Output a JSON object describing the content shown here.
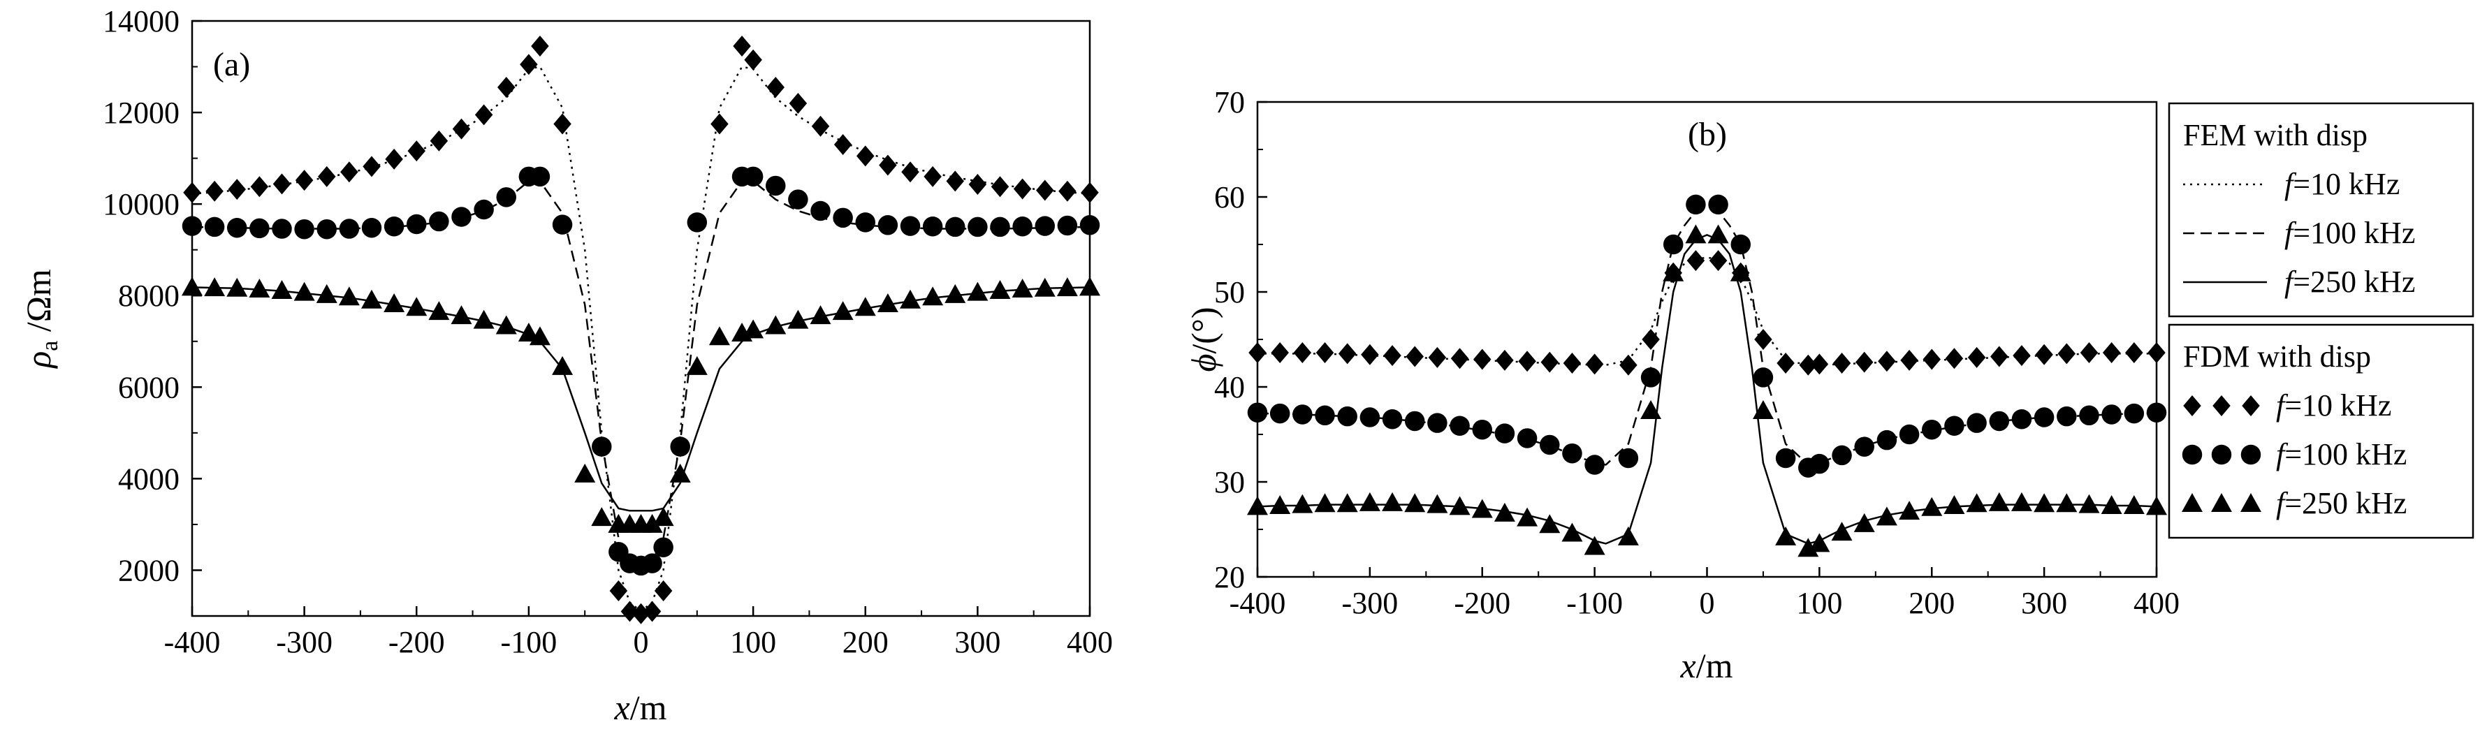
{
  "colors": {
    "ink": "#000000",
    "background": "#ffffff"
  },
  "chart_data": [
    {
      "type": "line",
      "panel_label": "(a)",
      "xlabel": {
        "var": "x",
        "unit": "/m"
      },
      "ylabel": {
        "var": "ρ",
        "sub": "a",
        "unit": " /Ωm"
      },
      "xlim": [
        -400,
        400
      ],
      "ylim": [
        1000,
        14000
      ],
      "xticks": [
        "-400",
        "-300",
        "-200",
        "-100",
        "0",
        "100",
        "200",
        "300",
        "400"
      ],
      "yticks": [
        "2000",
        "4000",
        "6000",
        "8000",
        "10000",
        "12000",
        "14000"
      ],
      "grid": false,
      "x": [
        -400,
        -380,
        -360,
        -340,
        -320,
        -300,
        -280,
        -260,
        -240,
        -220,
        -200,
        -180,
        -160,
        -140,
        -120,
        -100,
        -90,
        -70,
        -50,
        -35,
        -20,
        -10,
        0,
        10,
        20,
        35,
        50,
        70,
        90,
        100,
        120,
        140,
        160,
        180,
        200,
        220,
        240,
        260,
        280,
        300,
        320,
        340,
        360,
        380,
        400
      ],
      "series": [
        {
          "name": "FEM f=10 kHz",
          "kind": "line",
          "style": "dotted",
          "values": [
            10220,
            10260,
            10300,
            10360,
            10420,
            10500,
            10580,
            10680,
            10800,
            10960,
            11140,
            11360,
            11620,
            11920,
            12320,
            12950,
            13000,
            12100,
            9000,
            5000,
            2000,
            1300,
            1100,
            1300,
            2000,
            5000,
            9000,
            12100,
            13000,
            12950,
            12320,
            11920,
            11620,
            11360,
            11140,
            10960,
            10800,
            10680,
            10580,
            10500,
            10420,
            10360,
            10300,
            10260,
            10220
          ]
        },
        {
          "name": "FEM f=100 kHz",
          "kind": "line",
          "style": "dashed",
          "values": [
            9500,
            9490,
            9480,
            9470,
            9460,
            9460,
            9460,
            9460,
            9480,
            9500,
            9540,
            9600,
            9700,
            9850,
            10100,
            10500,
            10500,
            9800,
            7800,
            4800,
            2700,
            2200,
            2100,
            2200,
            2700,
            4800,
            7800,
            9800,
            10500,
            10500,
            10100,
            9850,
            9700,
            9600,
            9540,
            9500,
            9480,
            9460,
            9460,
            9460,
            9460,
            9470,
            9480,
            9490,
            9500
          ]
        },
        {
          "name": "FEM f=250 kHz",
          "kind": "line",
          "style": "solid",
          "values": [
            8180,
            8170,
            8160,
            8130,
            8100,
            8050,
            8000,
            7950,
            7880,
            7800,
            7720,
            7630,
            7540,
            7440,
            7320,
            7150,
            7000,
            6400,
            5000,
            3900,
            3350,
            3300,
            3300,
            3300,
            3350,
            3900,
            5000,
            6400,
            7000,
            7150,
            7320,
            7440,
            7540,
            7630,
            7720,
            7800,
            7880,
            7950,
            8000,
            8050,
            8100,
            8130,
            8160,
            8170,
            8180
          ]
        },
        {
          "name": "FDM f=10 kHz",
          "kind": "marker",
          "marker": "diamond",
          "values": [
            10250,
            10280,
            10320,
            10380,
            10440,
            10520,
            10600,
            10700,
            10820,
            10980,
            11160,
            11380,
            11640,
            11950,
            12550,
            13050,
            13450,
            11750,
            null,
            4700,
            1550,
            1100,
            1050,
            1100,
            1550,
            4700,
            null,
            11750,
            13450,
            13150,
            12550,
            12200,
            11700,
            11300,
            11050,
            10850,
            10700,
            10600,
            10500,
            10430,
            10380,
            10330,
            10300,
            10280,
            10250
          ]
        },
        {
          "name": "FDM f=100 kHz",
          "kind": "marker",
          "marker": "circle",
          "values": [
            9520,
            9500,
            9480,
            9470,
            9460,
            9450,
            9450,
            9460,
            9480,
            9510,
            9560,
            9620,
            9720,
            9880,
            10150,
            10600,
            10600,
            9550,
            null,
            4700,
            2400,
            2150,
            2100,
            2150,
            2500,
            4700,
            9600,
            null,
            10600,
            10600,
            10400,
            10100,
            9850,
            9700,
            9600,
            9540,
            9520,
            9510,
            9500,
            9500,
            9500,
            9510,
            9520,
            9530,
            9540
          ]
        },
        {
          "name": "FDM f=250 kHz",
          "kind": "marker",
          "marker": "triangle",
          "values": [
            8180,
            8170,
            8160,
            8140,
            8110,
            8070,
            8020,
            7970,
            7900,
            7820,
            7740,
            7650,
            7560,
            7460,
            7340,
            7180,
            7100,
            6450,
            4100,
            3150,
            3000,
            3000,
            3000,
            3000,
            3150,
            4100,
            6450,
            7100,
            7180,
            7250,
            7340,
            7460,
            7560,
            7650,
            7740,
            7820,
            7900,
            7970,
            8020,
            8070,
            8110,
            8140,
            8160,
            8170,
            8180
          ]
        }
      ]
    },
    {
      "type": "line",
      "panel_label": "(b)",
      "xlabel": {
        "var": "x",
        "unit": "/m"
      },
      "ylabel": {
        "var": "ϕ",
        "unit": "/(°)"
      },
      "xlim": [
        -400,
        400
      ],
      "ylim": [
        20,
        70
      ],
      "xticks": [
        "-400",
        "-300",
        "-200",
        "-100",
        "0",
        "100",
        "200",
        "300",
        "400"
      ],
      "yticks": [
        "20",
        "30",
        "40",
        "50",
        "60",
        "70"
      ],
      "grid": false,
      "x": [
        -400,
        -380,
        -360,
        -340,
        -320,
        -300,
        -280,
        -260,
        -240,
        -220,
        -200,
        -180,
        -160,
        -140,
        -120,
        -100,
        -90,
        -70,
        -50,
        -40,
        -30,
        -20,
        -10,
        0,
        10,
        20,
        30,
        40,
        50,
        70,
        90,
        100,
        120,
        140,
        160,
        180,
        200,
        220,
        240,
        260,
        280,
        300,
        320,
        340,
        360,
        380,
        400
      ],
      "series": [
        {
          "name": "FEM f=10 kHz",
          "kind": "line",
          "style": "dotted",
          "values": [
            43.5,
            43.5,
            43.5,
            43.5,
            43.4,
            43.3,
            43.2,
            43.1,
            43.0,
            42.9,
            42.8,
            42.7,
            42.6,
            42.5,
            42.4,
            42.3,
            42.3,
            42.8,
            46,
            49,
            51.5,
            53,
            53.5,
            53.6,
            53.5,
            53,
            51.5,
            49,
            46,
            42.8,
            42.3,
            42.3,
            42.4,
            42.5,
            42.6,
            42.7,
            42.8,
            42.9,
            43.0,
            43.1,
            43.2,
            43.3,
            43.4,
            43.5,
            43.5,
            43.5,
            43.5
          ]
        },
        {
          "name": "FEM f=100 kHz",
          "kind": "line",
          "style": "dashed",
          "values": [
            37.2,
            37.2,
            37.1,
            37.0,
            36.9,
            36.8,
            36.6,
            36.4,
            36.1,
            35.8,
            35.4,
            35.0,
            34.5,
            33.8,
            32.9,
            32.0,
            31.8,
            34,
            42,
            50,
            55,
            57,
            58.5,
            59,
            58.5,
            57,
            55,
            50,
            42,
            34,
            31.8,
            32.0,
            32.9,
            33.8,
            34.5,
            35.0,
            35.4,
            35.8,
            36.1,
            36.4,
            36.6,
            36.8,
            36.9,
            37.0,
            37.1,
            37.2,
            37.2
          ]
        },
        {
          "name": "FEM f=250 kHz",
          "kind": "line",
          "style": "solid",
          "values": [
            27.4,
            27.5,
            27.5,
            27.6,
            27.6,
            27.6,
            27.6,
            27.6,
            27.5,
            27.4,
            27.2,
            26.9,
            26.5,
            25.9,
            25.0,
            23.8,
            23.5,
            24.5,
            32,
            42,
            50,
            54,
            55.5,
            56,
            55.5,
            54,
            50,
            42,
            32,
            24.5,
            23.5,
            23.8,
            25.0,
            25.9,
            26.5,
            26.9,
            27.2,
            27.4,
            27.5,
            27.6,
            27.6,
            27.6,
            27.6,
            27.6,
            27.5,
            27.5,
            27.4
          ]
        },
        {
          "name": "FDM f=10 kHz",
          "kind": "marker",
          "marker": "diamond",
          "values": [
            43.6,
            43.6,
            43.6,
            43.6,
            43.5,
            43.4,
            43.3,
            43.2,
            43.1,
            43.0,
            42.9,
            42.8,
            42.7,
            42.6,
            42.5,
            42.4,
            null,
            42.3,
            45,
            null,
            52,
            null,
            53.3,
            null,
            53.3,
            null,
            52,
            null,
            45,
            42.5,
            42.3,
            42.4,
            42.5,
            42.6,
            42.7,
            42.8,
            42.9,
            43.0,
            43.1,
            43.2,
            43.3,
            43.4,
            43.5,
            43.6,
            43.6,
            43.6,
            43.6
          ]
        },
        {
          "name": "FDM f=100 kHz",
          "kind": "marker",
          "marker": "circle",
          "values": [
            37.3,
            37.2,
            37.1,
            37.0,
            36.9,
            36.8,
            36.6,
            36.4,
            36.2,
            35.9,
            35.5,
            35.1,
            34.6,
            33.9,
            33.0,
            31.8,
            null,
            32.5,
            41,
            null,
            55,
            null,
            59.2,
            null,
            59.2,
            null,
            55,
            null,
            41,
            32.5,
            31.5,
            31.9,
            32.8,
            33.7,
            34.4,
            35.0,
            35.5,
            35.9,
            36.2,
            36.4,
            36.6,
            36.8,
            36.9,
            37.0,
            37.1,
            37.2,
            37.3
          ]
        },
        {
          "name": "FDM f=250 kHz",
          "kind": "marker",
          "marker": "triangle",
          "values": [
            27.4,
            27.5,
            27.6,
            27.7,
            27.7,
            27.8,
            27.8,
            27.7,
            27.6,
            27.4,
            27.1,
            26.7,
            26.2,
            25.5,
            24.6,
            23.2,
            null,
            24.2,
            37.5,
            null,
            52,
            null,
            56,
            null,
            56,
            null,
            52,
            null,
            37.5,
            24.2,
            23.0,
            23.5,
            24.7,
            25.6,
            26.3,
            26.9,
            27.3,
            27.5,
            27.7,
            27.8,
            27.8,
            27.7,
            27.7,
            27.6,
            27.5,
            27.5,
            27.4
          ]
        }
      ]
    }
  ],
  "legend": {
    "placement": "right-of-panel-b",
    "fem_title": "FEM with disp",
    "fdm_title": "FDM with disp",
    "fem_entries": [
      {
        "style": "dotted",
        "var": "f",
        "text": "=10 kHz"
      },
      {
        "style": "dashed",
        "var": "f",
        "text": "=100 kHz"
      },
      {
        "style": "solid",
        "var": "f",
        "text": "=250 kHz"
      }
    ],
    "fdm_entries": [
      {
        "marker": "diamond",
        "var": "f",
        "text": "=10 kHz"
      },
      {
        "marker": "circle",
        "var": "f",
        "text": "=100 kHz"
      },
      {
        "marker": "triangle",
        "var": "f",
        "text": "=250 kHz"
      }
    ]
  }
}
